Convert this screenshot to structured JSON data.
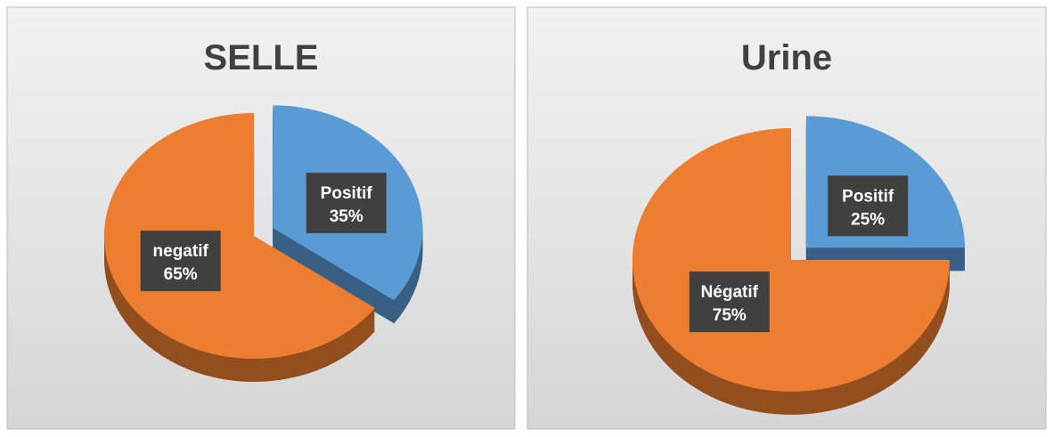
{
  "chart_data": [
    {
      "type": "pie",
      "title": "SELLE",
      "categories": [
        "Positif",
        "negatif"
      ],
      "values": [
        35,
        65
      ],
      "value_labels": [
        "35%",
        "65%"
      ],
      "colors": [
        "#5b9bd5",
        "#ed7d31"
      ]
    },
    {
      "type": "pie",
      "title": "Urine",
      "categories": [
        "Positif",
        "Négatif"
      ],
      "values": [
        25,
        75
      ],
      "value_labels": [
        "25%",
        "75%"
      ],
      "colors": [
        "#5b9bd5",
        "#ed7d31"
      ]
    }
  ]
}
